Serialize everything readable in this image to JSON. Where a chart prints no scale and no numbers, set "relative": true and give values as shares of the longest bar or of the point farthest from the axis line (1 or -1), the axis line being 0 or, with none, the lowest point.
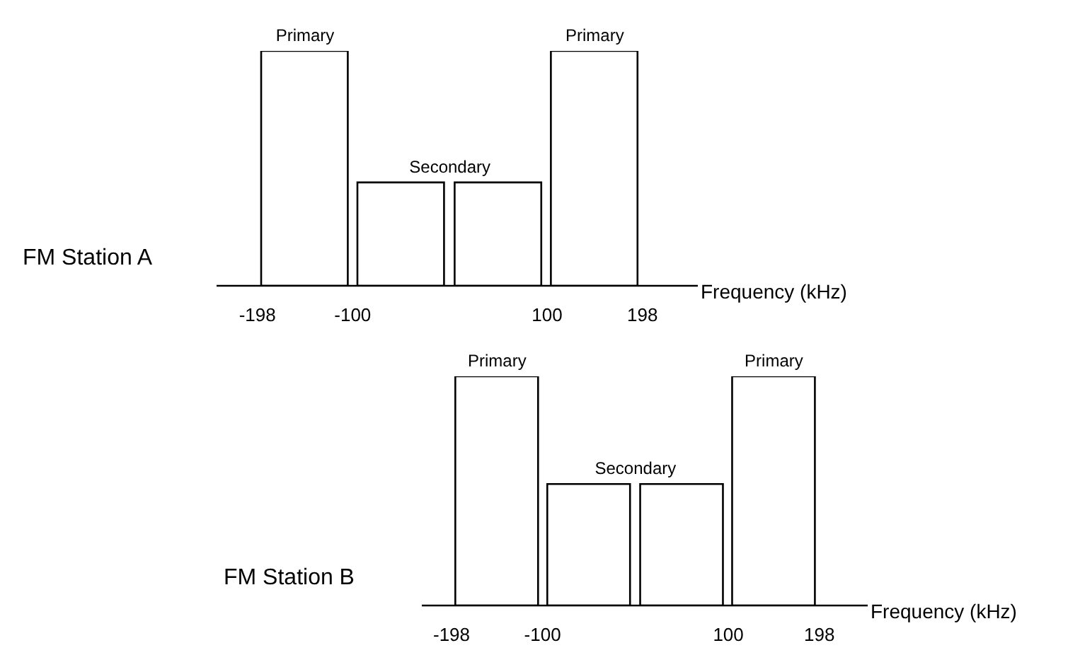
{
  "chart_data": [
    {
      "type": "bar",
      "ylabel": "FM Station A",
      "xlabel": "Frequency (kHz)",
      "x": [
        -149,
        -50,
        50,
        149
      ],
      "values": [
        1,
        0.44,
        0.44,
        1
      ],
      "relative": true,
      "color": "#000000",
      "xlim": [
        -240,
        255
      ],
      "xticks": [
        -198,
        -100,
        100,
        198
      ],
      "annotations": [
        {
          "text": "Primary",
          "x": -149,
          "y": 1
        },
        {
          "text": "Secondary",
          "x": 0,
          "y": 0.44
        },
        {
          "text": "Primary",
          "x": 149,
          "y": 1
        }
      ]
    },
    {
      "type": "bar",
      "ylabel": "FM Station B",
      "xlabel": "Frequency (kHz)",
      "x": [
        -149,
        -50,
        50,
        149
      ],
      "values": [
        1,
        0.53,
        0.53,
        1
      ],
      "relative": true,
      "color": "#000000",
      "xlim": [
        -230,
        250
      ],
      "xticks": [
        -198,
        -100,
        100,
        198
      ],
      "annotations": [
        {
          "text": "Primary",
          "x": -149,
          "y": 1
        },
        {
          "text": "Secondary",
          "x": 0,
          "y": 0.53
        },
        {
          "text": "Primary",
          "x": 149,
          "y": 1
        }
      ]
    }
  ]
}
